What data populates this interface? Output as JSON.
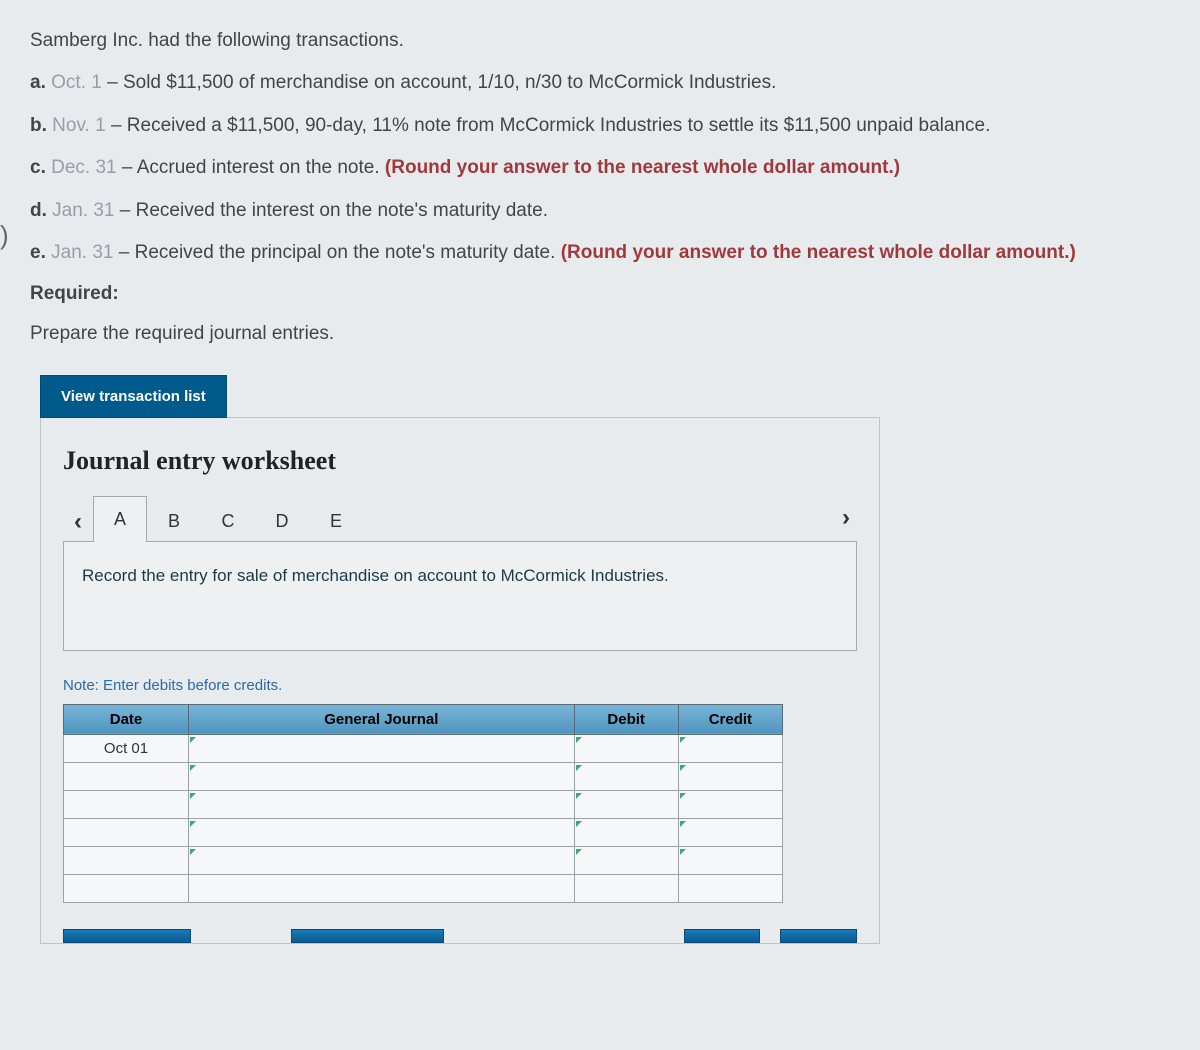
{
  "intro": "Samberg Inc. had the following transactions.",
  "items": [
    {
      "label": "a.",
      "date": "Oct. 1",
      "text": " – Sold $11,500 of merchandise on account, 1/10, n/30 to McCormick Industries.",
      "hint": ""
    },
    {
      "label": "b.",
      "date": "Nov. 1",
      "text": " – Received a $11,500, 90-day, 11% note from McCormick Industries to settle its $11,500 unpaid balance.",
      "hint": ""
    },
    {
      "label": "c.",
      "date": "Dec. 31",
      "text": " – Accrued interest on the note. ",
      "hint": "(Round your answer to the nearest whole dollar amount.)"
    },
    {
      "label": "d.",
      "date": "Jan. 31",
      "text": " – Received the interest on the note's maturity date.",
      "hint": ""
    },
    {
      "label": "e.",
      "date": "Jan. 31",
      "text": " – Received the principal on the note's maturity date. ",
      "hint": "(Round your answer to the nearest whole dollar amount.)"
    }
  ],
  "required_label": "Required:",
  "instruction": "Prepare the required journal entries.",
  "view_btn": "View transaction list",
  "worksheet": {
    "title": "Journal entry worksheet",
    "tabs": [
      "A",
      "B",
      "C",
      "D",
      "E"
    ],
    "active_tab": 0,
    "prompt": "Record the entry for sale of merchandise on account to McCormick Industries.",
    "note": "Note: Enter debits before credits.",
    "columns": [
      "Date",
      "General Journal",
      "Debit",
      "Credit"
    ],
    "rows": [
      {
        "date": "Oct 01",
        "gj": "",
        "debit": "",
        "credit": ""
      },
      {
        "date": "",
        "gj": "",
        "debit": "",
        "credit": ""
      },
      {
        "date": "",
        "gj": "",
        "debit": "",
        "credit": ""
      },
      {
        "date": "",
        "gj": "",
        "debit": "",
        "credit": ""
      },
      {
        "date": "",
        "gj": "",
        "debit": "",
        "credit": ""
      },
      {
        "date": "",
        "gj": "",
        "debit": "",
        "credit": ""
      }
    ]
  },
  "colors": {
    "hint": "#a03a3a",
    "date_gray": "#999ea3",
    "btn_bg": "#005a8c",
    "th_bg": "#5aa0c8",
    "note_blue": "#2a6aa5"
  }
}
